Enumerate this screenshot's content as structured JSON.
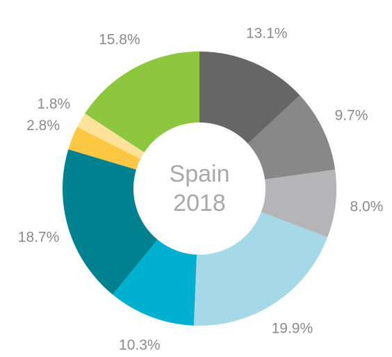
{
  "chart_data": {
    "type": "pie",
    "title": "Spain",
    "subtitle": "2018",
    "values": [
      13.1,
      9.7,
      8.0,
      19.9,
      10.3,
      18.7,
      2.8,
      1.8,
      15.8
    ],
    "value_labels": [
      "13.1%",
      "9.7%",
      "8.0%",
      "19.9%",
      "10.3%",
      "18.7%",
      "2.8%",
      "1.8%",
      "15.8%"
    ],
    "colors": [
      "#666666",
      "#888888",
      "#b5b5b7",
      "#a5d9e8",
      "#00b0d0",
      "#00818f",
      "#fcc844",
      "#fde39a",
      "#8dc63f"
    ]
  }
}
